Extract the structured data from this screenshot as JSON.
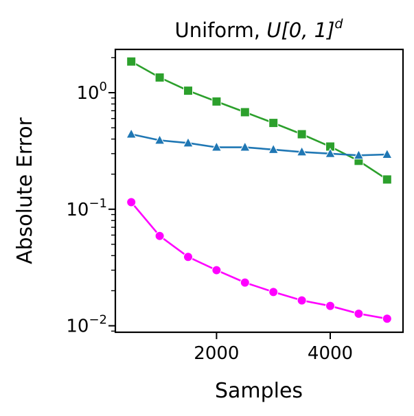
{
  "chart_data": {
    "type": "line",
    "title": "Uniform, U[0, 1]^d",
    "title_parts": {
      "prefix": "Uniform, ",
      "math": "U[0, 1]",
      "exponent": "d"
    },
    "xlabel": "Samples",
    "ylabel": "Absolute Error",
    "yscale": "log",
    "xlim": [
      220,
      5280
    ],
    "ylim": [
      0.0088,
      2.35
    ],
    "grid": false,
    "x_ticks": [
      2000,
      4000
    ],
    "y_ticks": [
      {
        "value": 1,
        "base": "10",
        "exp": "0"
      },
      {
        "value": 0.1,
        "base": "10",
        "exp": "−1"
      },
      {
        "value": 0.01,
        "base": "10",
        "exp": "−2"
      }
    ],
    "x": [
      500,
      1000,
      1500,
      2000,
      2500,
      3000,
      3500,
      4000,
      4500,
      5000
    ],
    "series": [
      {
        "color": "#2ca02c",
        "marker": "square",
        "values": [
          1.85,
          1.35,
          1.04,
          0.84,
          0.68,
          0.55,
          0.44,
          0.345,
          0.26,
          0.18
        ]
      },
      {
        "color": "#1f77b4",
        "marker": "triangle",
        "values": [
          0.44,
          0.39,
          0.37,
          0.34,
          0.34,
          0.325,
          0.31,
          0.3,
          0.29,
          0.295
        ]
      },
      {
        "color": "#ff00ff",
        "marker": "circle",
        "values": [
          0.115,
          0.059,
          0.039,
          0.03,
          0.0235,
          0.0195,
          0.0165,
          0.0148,
          0.0127,
          0.0115
        ]
      }
    ]
  }
}
